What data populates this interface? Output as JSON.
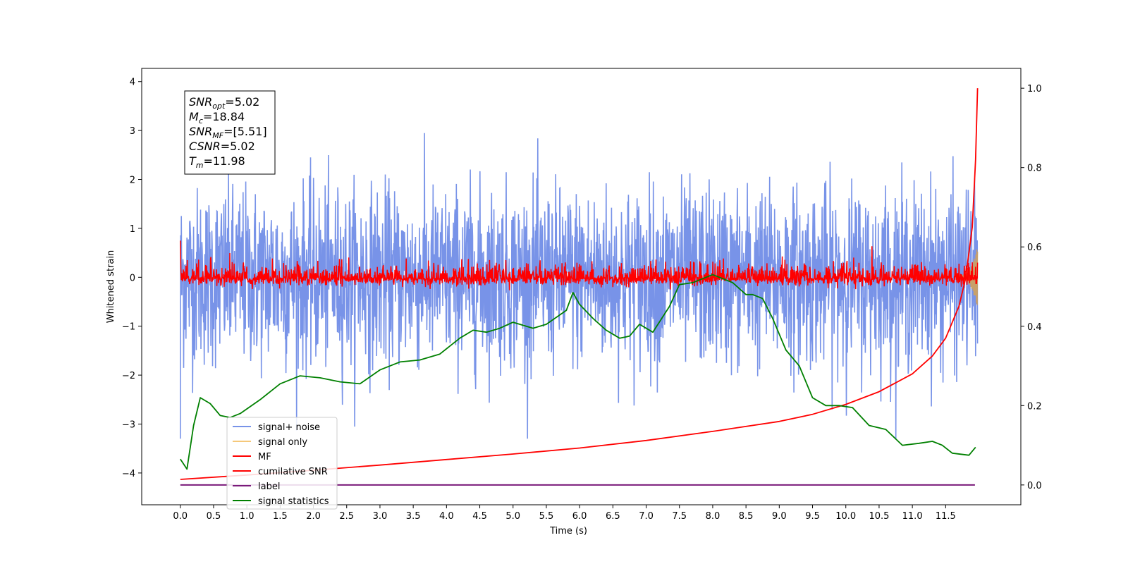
{
  "chart_data": {
    "type": "line",
    "xlabel": "Time (s)",
    "ylabel": "Whitened strain",
    "xlim": [
      -0.58,
      12.63
    ],
    "ylim": [
      -4.65,
      4.27
    ],
    "y2lim": [
      -0.05,
      1.05
    ],
    "xticks": [
      "0.0",
      "0.5",
      "1.0",
      "1.5",
      "2.0",
      "2.5",
      "3.0",
      "3.5",
      "4.0",
      "4.5",
      "5.0",
      "5.5",
      "6.0",
      "6.5",
      "7.0",
      "7.5",
      "8.0",
      "8.5",
      "9.0",
      "9.5",
      "10.0",
      "10.5",
      "11.0",
      "11.5"
    ],
    "yticks": [
      "4",
      "3",
      "2",
      "1",
      "0",
      "−1",
      "−2",
      "−3",
      "−4"
    ],
    "y2ticks": [
      "1.0",
      "0.8",
      "0.6",
      "0.4",
      "0.2",
      "0.0"
    ],
    "annotation": {
      "lines": [
        {
          "base": "SNR",
          "sub": "opt",
          "value": "=5.02"
        },
        {
          "base": "M",
          "sub": "c",
          "value": "=18.84"
        },
        {
          "base": "SNR",
          "sub": "MF",
          "value": "=[5.51]"
        },
        {
          "base": "CSNR",
          "sub": "",
          "value": "=5.02"
        },
        {
          "base": "T",
          "sub": "m",
          "value": "=11.98"
        }
      ]
    },
    "legend": {
      "position": "lower-left",
      "entries": [
        {
          "label": "signal+ noise",
          "color": "#7893e8"
        },
        {
          "label": "signal only",
          "color": "#f5c87a"
        },
        {
          "label": "MF",
          "color": "#ff0000"
        },
        {
          "label": "cumilative SNR",
          "color": "#ff0000"
        },
        {
          "label": "label",
          "color": "#7a1a7a"
        },
        {
          "label": "signal statistics",
          "color": "#008000"
        }
      ]
    },
    "series": [
      {
        "name": "signal+ noise",
        "axis": "left",
        "color": "#7893e8",
        "t_range": [
          0.0,
          11.98
        ],
        "approx_envelope": [
          -2.0,
          2.0
        ],
        "noise_std": 0.9
      },
      {
        "name": "signal only",
        "axis": "left",
        "color": "#c8a06a",
        "t_range": [
          11.7,
          11.98
        ],
        "approx_peak": 0.6
      },
      {
        "name": "MF",
        "axis": "left",
        "color": "#ff0000",
        "t_range": [
          0.0,
          11.98
        ],
        "approx_envelope": [
          -0.3,
          0.5
        ]
      },
      {
        "name": "cumilative SNR",
        "axis": "right",
        "color": "#ff0000",
        "x": [
          0.0,
          1.0,
          2.0,
          3.0,
          4.0,
          5.0,
          6.0,
          7.0,
          8.0,
          9.0,
          9.5,
          10.0,
          10.5,
          11.0,
          11.3,
          11.5,
          11.7,
          11.8,
          11.9,
          11.95,
          11.98
        ],
        "values": [
          0.014,
          0.025,
          0.037,
          0.05,
          0.064,
          0.078,
          0.093,
          0.112,
          0.135,
          0.16,
          0.178,
          0.203,
          0.235,
          0.28,
          0.325,
          0.37,
          0.45,
          0.52,
          0.65,
          0.82,
          1.0
        ]
      },
      {
        "name": "label",
        "axis": "right",
        "color": "#7a1a7a",
        "x": [
          0.0,
          11.94
        ],
        "values": [
          0.0,
          0.0
        ]
      },
      {
        "name": "signal statistics",
        "axis": "right",
        "color": "#008000",
        "x": [
          0.0,
          0.1,
          0.2,
          0.3,
          0.45,
          0.6,
          0.75,
          0.9,
          1.2,
          1.5,
          1.8,
          2.1,
          2.4,
          2.7,
          3.0,
          3.3,
          3.6,
          3.9,
          4.2,
          4.4,
          4.6,
          4.8,
          5.0,
          5.3,
          5.5,
          5.8,
          5.9,
          6.0,
          6.2,
          6.4,
          6.6,
          6.75,
          6.9,
          7.1,
          7.35,
          7.5,
          7.7,
          8.0,
          8.3,
          8.5,
          8.6,
          8.75,
          8.9,
          9.1,
          9.3,
          9.5,
          9.7,
          9.9,
          10.1,
          10.35,
          10.6,
          10.85,
          11.1,
          11.3,
          11.45,
          11.6,
          11.85,
          11.95
        ],
        "values": [
          0.065,
          0.04,
          0.15,
          0.22,
          0.205,
          0.175,
          0.17,
          0.18,
          0.215,
          0.255,
          0.275,
          0.27,
          0.26,
          0.255,
          0.29,
          0.31,
          0.315,
          0.33,
          0.37,
          0.39,
          0.385,
          0.395,
          0.41,
          0.395,
          0.405,
          0.44,
          0.485,
          0.455,
          0.42,
          0.39,
          0.37,
          0.375,
          0.405,
          0.385,
          0.45,
          0.505,
          0.51,
          0.53,
          0.51,
          0.48,
          0.48,
          0.47,
          0.42,
          0.34,
          0.3,
          0.22,
          0.2,
          0.2,
          0.195,
          0.15,
          0.14,
          0.1,
          0.105,
          0.11,
          0.1,
          0.08,
          0.075,
          0.095
        ]
      }
    ]
  }
}
